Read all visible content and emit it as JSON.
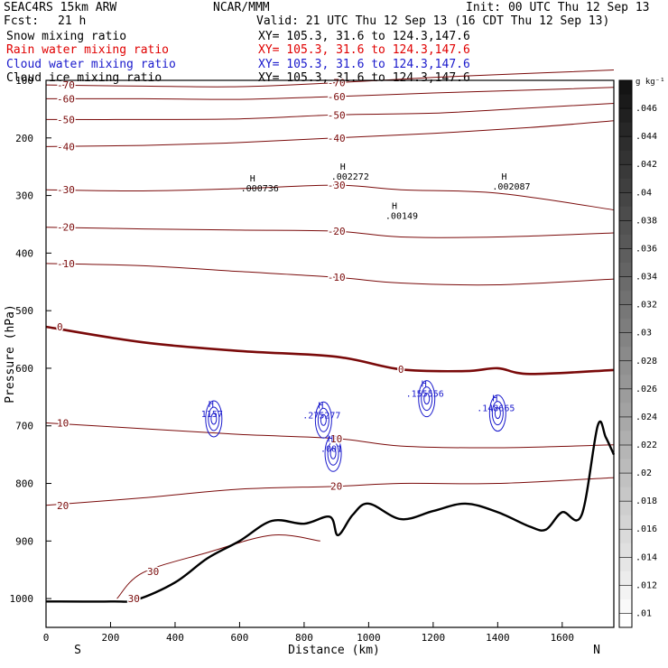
{
  "header": {
    "model": "SEAC4RS 15km ARW",
    "center": "NCAR/MMM",
    "init": "Init: 00 UTC Thu 12 Sep 13",
    "fcst_label": "Fcst:",
    "fcst_value": "21 h",
    "valid": "Valid: 21 UTC Thu 12 Sep 13 (16 CDT Thu 12 Sep 13)"
  },
  "legend": [
    {
      "label": "Snow mixing ratio",
      "xy": "XY= 105.3, 31.6 to 124.3,147.6",
      "color": "#000000"
    },
    {
      "label": "Rain water mixing ratio",
      "xy": "XY= 105.3, 31.6 to 124.3,147.6",
      "color": "#e00000"
    },
    {
      "label": "Cloud water mixing ratio",
      "xy": "XY= 105.3, 31.6 to 124.3,147.6",
      "color": "#1a1acc"
    },
    {
      "label": "Cloud ice mixing ratio",
      "xy": "XY= 105.3, 31.6 to 124.3,147.6",
      "color": "#000000"
    }
  ],
  "chart_data": {
    "type": "cross-section contour",
    "xlabel": "Distance (km)",
    "ylabel": "Pressure (hPa)",
    "xlim": [
      0,
      1760
    ],
    "ylim": [
      1050,
      100
    ],
    "x_ticks": [
      0,
      200,
      400,
      600,
      800,
      1000,
      1200,
      1400,
      1600
    ],
    "y_ticks": [
      100,
      200,
      300,
      400,
      500,
      600,
      700,
      800,
      900,
      1000
    ],
    "endpoint_left": "S",
    "endpoint_right": "N",
    "colorbar": {
      "unit": "g kg⁻¹",
      "labels": [
        ".046",
        ".044",
        ".042",
        ".04",
        ".038",
        ".036",
        ".034",
        ".032",
        ".03",
        ".028",
        ".026",
        ".024",
        ".022",
        ".02",
        ".018",
        ".016",
        ".014",
        ".012",
        ".01"
      ],
      "range": [
        0.01,
        0.047
      ]
    },
    "temperature_isotherms": [
      {
        "label": "-70",
        "points": [
          [
            0,
            108
          ],
          [
            300,
            110
          ],
          [
            600,
            111
          ],
          [
            900,
            104
          ],
          [
            1200,
            95
          ],
          [
            1500,
            88
          ],
          [
            1760,
            82
          ]
        ]
      },
      {
        "label": "-60",
        "points": [
          [
            0,
            132
          ],
          [
            300,
            132
          ],
          [
            600,
            133
          ],
          [
            900,
            128
          ],
          [
            1200,
            122
          ],
          [
            1500,
            117
          ],
          [
            1760,
            112
          ]
        ]
      },
      {
        "label": "-50",
        "points": [
          [
            0,
            168
          ],
          [
            300,
            168
          ],
          [
            600,
            167
          ],
          [
            900,
            160
          ],
          [
            1200,
            157
          ],
          [
            1500,
            148
          ],
          [
            1760,
            140
          ]
        ]
      },
      {
        "label": "-40",
        "points": [
          [
            0,
            215
          ],
          [
            300,
            213
          ],
          [
            600,
            208
          ],
          [
            900,
            200
          ],
          [
            1200,
            192
          ],
          [
            1500,
            182
          ],
          [
            1760,
            170
          ]
        ]
      },
      {
        "label": "-30",
        "points": [
          [
            0,
            290
          ],
          [
            300,
            292
          ],
          [
            600,
            288
          ],
          [
            900,
            282
          ],
          [
            1100,
            290
          ],
          [
            1400,
            296
          ],
          [
            1760,
            325
          ]
        ]
      },
      {
        "label": "-20",
        "points": [
          [
            0,
            355
          ],
          [
            300,
            358
          ],
          [
            600,
            360
          ],
          [
            900,
            362
          ],
          [
            1100,
            372
          ],
          [
            1400,
            372
          ],
          [
            1760,
            365
          ]
        ]
      },
      {
        "label": "-10",
        "points": [
          [
            0,
            418
          ],
          [
            300,
            422
          ],
          [
            600,
            432
          ],
          [
            900,
            442
          ],
          [
            1100,
            452
          ],
          [
            1400,
            455
          ],
          [
            1760,
            445
          ]
        ]
      },
      {
        "label": "0",
        "bold": true,
        "points": [
          [
            0,
            528
          ],
          [
            300,
            555
          ],
          [
            600,
            570
          ],
          [
            900,
            580
          ],
          [
            1100,
            602
          ],
          [
            1300,
            605
          ],
          [
            1400,
            600
          ],
          [
            1500,
            610
          ],
          [
            1760,
            603
          ]
        ]
      },
      {
        "label": "10",
        "points": [
          [
            0,
            695
          ],
          [
            300,
            705
          ],
          [
            600,
            715
          ],
          [
            900,
            722
          ],
          [
            1100,
            735
          ],
          [
            1400,
            738
          ],
          [
            1760,
            733
          ]
        ]
      },
      {
        "label": "20",
        "points": [
          [
            0,
            838
          ],
          [
            300,
            825
          ],
          [
            600,
            810
          ],
          [
            900,
            805
          ],
          [
            1100,
            800
          ],
          [
            1400,
            800
          ],
          [
            1760,
            790
          ]
        ]
      },
      {
        "label": "30",
        "points": [
          [
            220,
            1000
          ],
          [
            300,
            955
          ],
          [
            500,
            920
          ],
          [
            700,
            890
          ],
          [
            850,
            900
          ]
        ]
      }
    ],
    "cloud_water_maxima": [
      {
        "label": "H",
        "value": "1157",
        "x": 520,
        "p": 680
      },
      {
        "label": "H",
        "value": ".275277",
        "x": 860,
        "p": 682
      },
      {
        "label": "H",
        "value": ".001",
        "x": 890,
        "p": 740
      },
      {
        "label": "H",
        "value": ".155556",
        "x": 1180,
        "p": 645
      },
      {
        "label": "H",
        "value": ".148665",
        "x": 1400,
        "p": 670
      }
    ],
    "ice_maxima": [
      {
        "label": "H",
        "value": ".000736",
        "x": 640,
        "p": 288
      },
      {
        "label": "H",
        "value": ".002272",
        "x": 920,
        "p": 268
      },
      {
        "label": "H",
        "value": ".00149",
        "x": 1080,
        "p": 336
      },
      {
        "label": "H",
        "value": ".002087",
        "x": 1420,
        "p": 285
      }
    ],
    "terrain": [
      [
        0,
        1005
      ],
      [
        200,
        1005
      ],
      [
        280,
        1002
      ],
      [
        400,
        972
      ],
      [
        500,
        930
      ],
      [
        600,
        900
      ],
      [
        700,
        865
      ],
      [
        800,
        870
      ],
      [
        880,
        858
      ],
      [
        905,
        890
      ],
      [
        950,
        855
      ],
      [
        1000,
        835
      ],
      [
        1100,
        862
      ],
      [
        1200,
        848
      ],
      [
        1300,
        835
      ],
      [
        1400,
        850
      ],
      [
        1500,
        875
      ],
      [
        1550,
        880
      ],
      [
        1600,
        850
      ],
      [
        1660,
        855
      ],
      [
        1710,
        700
      ],
      [
        1735,
        720
      ],
      [
        1760,
        750
      ]
    ]
  }
}
